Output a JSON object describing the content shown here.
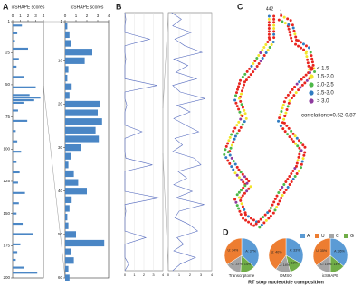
{
  "panel_labels": [
    "A",
    "B",
    "C",
    "D"
  ],
  "chart_data": [
    {
      "type": "bar",
      "orientation": "horizontal",
      "title": "icSHAPE scores",
      "color": "#4a86c5",
      "y": [
        4,
        10,
        16,
        22,
        30,
        36,
        44,
        52,
        58,
        60,
        62,
        64,
        70,
        78,
        86,
        94,
        102,
        110,
        118,
        126,
        134,
        142,
        150,
        158,
        166,
        174,
        180,
        186,
        192,
        196
      ],
      "values": [
        1.2,
        0.6,
        0.3,
        2.0,
        0.8,
        0.5,
        1.5,
        3.0,
        2.2,
        3.6,
        2.8,
        1.4,
        0.7,
        1.9,
        0.4,
        0.6,
        1.1,
        0.5,
        0.9,
        0.7,
        1.6,
        0.8,
        0.5,
        1.3,
        2.6,
        1.0,
        0.6,
        0.4,
        1.5,
        3.2
      ],
      "xlim": [
        0,
        4
      ],
      "xticks": [
        0,
        1,
        2,
        3,
        4
      ],
      "ylim": [
        1,
        200
      ],
      "yticks": [
        1,
        25,
        50,
        75,
        100,
        125,
        150,
        175,
        200
      ]
    },
    {
      "type": "bar",
      "orientation": "horizontal",
      "title": "icSHAPE scores",
      "color": "#4a86c5",
      "y": [
        2,
        4,
        6,
        8,
        10,
        12,
        14,
        16,
        18,
        20,
        22,
        24,
        26,
        28,
        30,
        32,
        34,
        36,
        38,
        40,
        42,
        44,
        46,
        48,
        50,
        52,
        54,
        56,
        58,
        60
      ],
      "values": [
        0.2,
        0.4,
        0.5,
        2.5,
        1.8,
        0.3,
        0.2,
        0.6,
        0.4,
        3.2,
        3.0,
        3.4,
        2.8,
        3.1,
        1.5,
        0.5,
        0.3,
        0.8,
        1.2,
        2.0,
        0.6,
        0.4,
        0.2,
        0.3,
        1.0,
        3.6,
        0.5,
        0.8,
        0.3,
        0.4
      ],
      "xlim": [
        0,
        4
      ],
      "xticks": [
        0,
        1,
        2,
        3,
        4
      ],
      "ylim": [
        1,
        60
      ],
      "yticks": [
        1,
        10,
        20,
        30,
        40,
        50,
        60
      ]
    },
    {
      "type": "line",
      "orientation": "vertical",
      "color": "#5a6fc0",
      "grid": true,
      "values": [
        0,
        0.1,
        0,
        0,
        2.6,
        0,
        0,
        0.1,
        0,
        0,
        0,
        3.4,
        0,
        0,
        0.2,
        0,
        0,
        0,
        1.8,
        0,
        0,
        0,
        0.1,
        2.9,
        0,
        0,
        0,
        0,
        3.6,
        0,
        0.1,
        0,
        0,
        0,
        2.2,
        0,
        0,
        0,
        0.4,
        0
      ],
      "xlim": [
        0,
        4
      ],
      "xticks": [
        0,
        1,
        2,
        3,
        4
      ]
    },
    {
      "type": "line",
      "orientation": "vertical",
      "color": "#5a6fc0",
      "grid": true,
      "values": [
        0.3,
        1.2,
        0.4,
        2.1,
        0.6,
        1.5,
        3.1,
        0.5,
        1.8,
        0.7,
        2.6,
        0.4,
        1.1,
        3.4,
        0.8,
        2.0,
        0.5,
        1.6,
        2.8,
        0.6,
        1.3,
        0.4,
        2.4,
        3.0,
        0.9,
        1.7,
        0.5,
        2.2,
        0.7,
        3.3,
        1.0,
        0.6,
        1.9,
        2.7,
        0.8,
        1.4,
        0.5,
        2.5,
        1.1,
        0.4
      ],
      "xlim": [
        0,
        4
      ],
      "xticks": [
        0,
        1,
        2,
        3,
        4
      ]
    },
    {
      "type": "pie",
      "title": "RT stop nucleotide composition",
      "categories": [
        "A",
        "U",
        "C",
        "G"
      ],
      "colors": [
        "#5b9bd5",
        "#ed7d31",
        "#a5a5a5",
        "#70ad47"
      ],
      "pies": [
        {
          "name": "Transcriptome",
          "values": [
            37,
            34,
            15,
            14
          ],
          "value_labels": [
            "A: 37%",
            "U: 34%",
            "C: 15%",
            "G: 14%"
          ]
        },
        {
          "name": "DMSO",
          "values": [
            33,
            40,
            14,
            13
          ],
          "value_labels": [
            "A: 33%",
            "U: 40%",
            "C: 14%",
            "G: 13%"
          ]
        },
        {
          "name": "icSHAPE",
          "values": [
            36,
            35,
            15,
            14
          ],
          "value_labels": [
            "A: 36%",
            "U: 35%",
            "C: 15%",
            "G: 14%"
          ]
        }
      ]
    }
  ],
  "structure": {
    "end_labels": [
      "442",
      "1"
    ],
    "legend": [
      {
        "label": "< 1.5",
        "color": "#e8251f"
      },
      {
        "label": "1.5-2.0",
        "color": "#f2e52a"
      },
      {
        "label": "2.0-2.5",
        "color": "#4db848"
      },
      {
        "label": "2.5-3.0",
        "color": "#2f7bc1"
      },
      {
        "label": "> 3.0",
        "color": "#8e3b9e"
      }
    ],
    "note": "correlations=0.52-0.87"
  }
}
